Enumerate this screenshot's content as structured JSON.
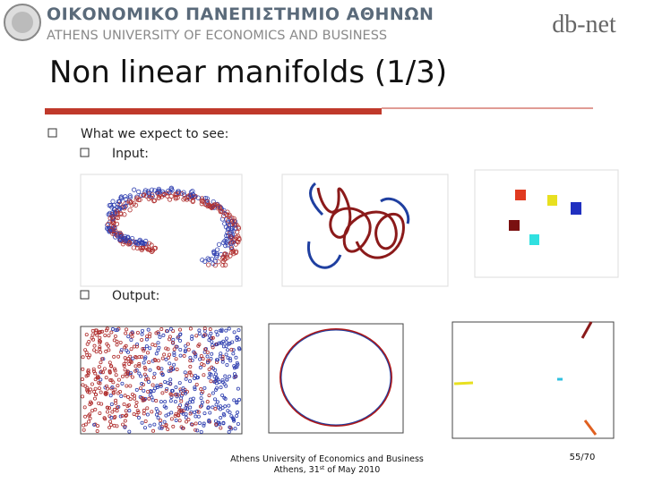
{
  "header": {
    "greek": "ΟΙΚΟΝΟΜΙΚΟ ΠΑΝΕΠΙΣΤΗΜΙΟ ΑΘΗΝΩΝ",
    "english": "ATHENS UNIVERSITY OF ECONOMICS AND BUSINESS",
    "logo": "db-net"
  },
  "title": "Non linear manifolds (1/3)",
  "bullets": [
    "What we expect to see:",
    "Input:",
    "Output:"
  ],
  "footer": {
    "line1": "Athens University of Economics and Business",
    "line2": [
      "Athens, 31",
      "st",
      " of May 2010"
    ],
    "page": "55/70"
  }
}
